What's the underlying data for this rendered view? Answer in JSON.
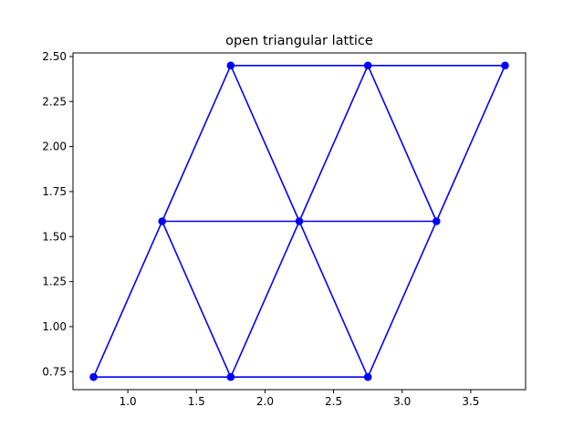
{
  "chart_data": {
    "type": "line",
    "title": "open triangular lattice",
    "xlabel": "",
    "ylabel": "",
    "xlim": [
      0.6,
      3.9
    ],
    "ylim": [
      0.65,
      2.52
    ],
    "xticks": [
      1.0,
      1.5,
      2.0,
      2.5,
      3.0,
      3.5
    ],
    "xtick_labels": [
      "1.0",
      "1.5",
      "2.0",
      "2.5",
      "3.0",
      "3.5"
    ],
    "yticks": [
      0.75,
      1.0,
      1.25,
      1.5,
      1.75,
      2.0,
      2.25,
      2.5
    ],
    "ytick_labels": [
      "0.75",
      "1.00",
      "1.25",
      "1.50",
      "1.75",
      "2.00",
      "2.25",
      "2.50"
    ],
    "grid": false,
    "color": "#0000ff",
    "marker": "circle",
    "nodes": [
      {
        "x": 0.75,
        "y": 0.72
      },
      {
        "x": 1.75,
        "y": 0.72
      },
      {
        "x": 2.75,
        "y": 0.72
      },
      {
        "x": 1.25,
        "y": 1.585
      },
      {
        "x": 2.25,
        "y": 1.585
      },
      {
        "x": 3.25,
        "y": 1.585
      },
      {
        "x": 1.75,
        "y": 2.45
      },
      {
        "x": 2.75,
        "y": 2.45
      },
      {
        "x": 3.75,
        "y": 2.45
      }
    ],
    "edges": [
      [
        0,
        1
      ],
      [
        1,
        2
      ],
      [
        3,
        4
      ],
      [
        4,
        5
      ],
      [
        6,
        7
      ],
      [
        7,
        8
      ],
      [
        0,
        3
      ],
      [
        1,
        3
      ],
      [
        1,
        4
      ],
      [
        2,
        4
      ],
      [
        2,
        5
      ],
      [
        3,
        6
      ],
      [
        4,
        6
      ],
      [
        4,
        7
      ],
      [
        5,
        7
      ],
      [
        5,
        8
      ]
    ]
  }
}
